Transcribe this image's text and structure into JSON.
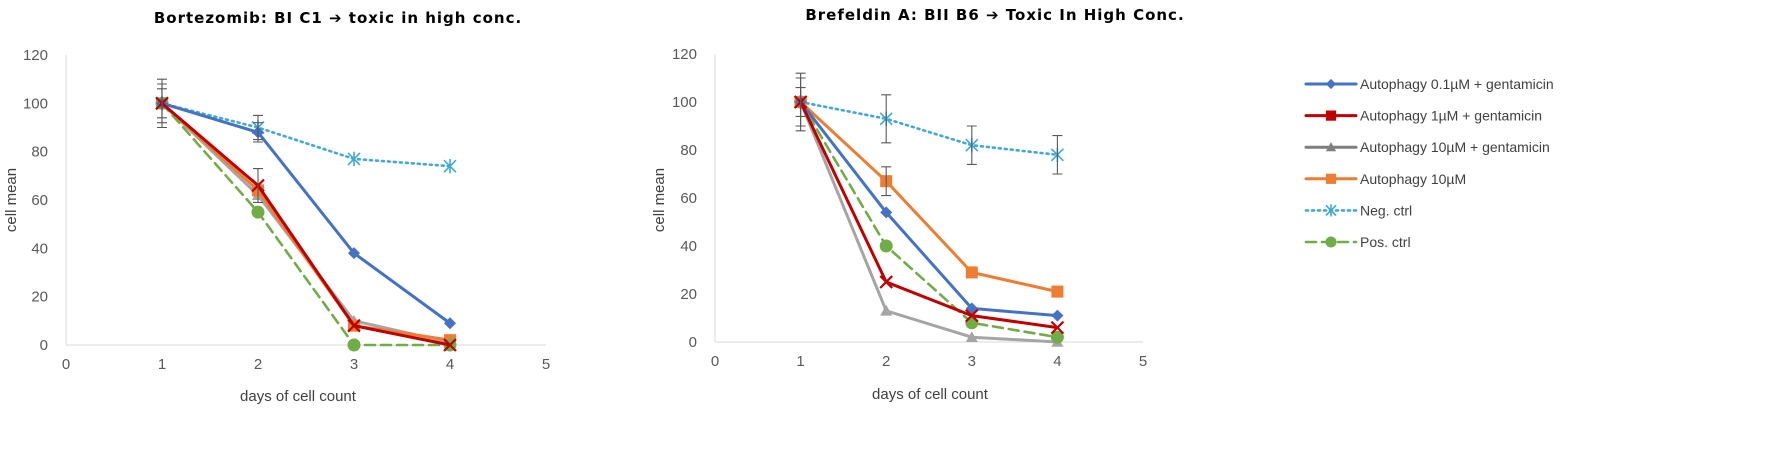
{
  "chart_data": [
    {
      "type": "line",
      "title": "Bortezomib: BI C1 ➔ toxic in high conc.",
      "xlabel": "days of cell count",
      "ylabel": "cell mean",
      "xlim": [
        0,
        5
      ],
      "ylim": [
        0,
        120
      ],
      "xticks": [
        0,
        1,
        2,
        3,
        4,
        5
      ],
      "yticks": [
        0,
        20,
        40,
        60,
        80,
        100,
        120
      ],
      "grid": false,
      "series": [
        {
          "name": "Autophagy 10µM + gentamicin",
          "color": "#a5a5a5",
          "marker": "triangle",
          "dash": "solid",
          "x": [
            1,
            2,
            3,
            4
          ],
          "y": [
            100,
            62,
            10,
            1
          ]
        },
        {
          "name": "Autophagy 10µM",
          "color": "#ed7d31",
          "marker": "square",
          "dash": "solid",
          "x": [
            1,
            2,
            3,
            4
          ],
          "y": [
            100,
            64,
            8,
            2
          ]
        },
        {
          "name": "Neg. ctrl",
          "color": "#41a9d6",
          "marker": "star",
          "dash": "dotted",
          "x": [
            1,
            2,
            3,
            4
          ],
          "y": [
            100,
            90,
            77,
            74
          ],
          "err": [
            10,
            5,
            0,
            0
          ]
        },
        {
          "name": "Pos. ctrl",
          "color": "#70ad47",
          "marker": "circle",
          "dash": "dashed",
          "x": [
            1,
            2,
            3,
            4
          ],
          "y": [
            100,
            55,
            0,
            0
          ]
        },
        {
          "name": "Autophagy 0.1µM + gentamicin",
          "color": "#4472c4",
          "marker": "diamond",
          "dash": "solid",
          "x": [
            1,
            2,
            3,
            4
          ],
          "y": [
            100,
            88,
            38,
            9
          ],
          "err": [
            8,
            4,
            0,
            0
          ]
        },
        {
          "name": "Autophagy 1µM + gentamicin",
          "color": "#c00000",
          "marker": "x",
          "dash": "solid",
          "x": [
            1,
            2,
            3,
            4
          ],
          "y": [
            100,
            66,
            8,
            0
          ],
          "err": [
            6,
            7,
            0,
            0
          ]
        }
      ]
    },
    {
      "type": "line",
      "title": "Brefeldin A: BII B6 ➔ Toxic In High Conc.",
      "xlabel": "days of cell count",
      "ylabel": "cell mean",
      "xlim": [
        0,
        5
      ],
      "ylim": [
        0,
        120
      ],
      "xticks": [
        0,
        1,
        2,
        3,
        4,
        5
      ],
      "yticks": [
        0,
        20,
        40,
        60,
        80,
        100,
        120
      ],
      "grid": false,
      "series": [
        {
          "name": "Autophagy 10µM + gentamicin",
          "color": "#a5a5a5",
          "marker": "triangle",
          "dash": "solid",
          "x": [
            1,
            2,
            3,
            4
          ],
          "y": [
            100,
            13,
            2,
            0
          ]
        },
        {
          "name": "Pos. ctrl",
          "color": "#70ad47",
          "marker": "circle",
          "dash": "dashed",
          "x": [
            1,
            2,
            3,
            4
          ],
          "y": [
            100,
            40,
            8,
            2
          ]
        },
        {
          "name": "Neg. ctrl",
          "color": "#41a9d6",
          "marker": "star",
          "dash": "dotted",
          "x": [
            1,
            2,
            3,
            4
          ],
          "y": [
            100,
            93,
            82,
            78
          ],
          "err": [
            12,
            10,
            8,
            8
          ]
        },
        {
          "name": "Autophagy 10µM",
          "color": "#ed7d31",
          "marker": "square",
          "dash": "solid",
          "x": [
            1,
            2,
            3,
            4
          ],
          "y": [
            100,
            67,
            29,
            21
          ],
          "err": [
            6,
            6,
            0,
            0
          ]
        },
        {
          "name": "Autophagy 0.1µM + gentamicin",
          "color": "#4472c4",
          "marker": "diamond",
          "dash": "solid",
          "x": [
            1,
            2,
            3,
            4
          ],
          "y": [
            100,
            54,
            14,
            11
          ]
        },
        {
          "name": "Autophagy 1µM + gentamicin",
          "color": "#c00000",
          "marker": "x",
          "dash": "solid",
          "x": [
            1,
            2,
            3,
            4
          ],
          "y": [
            100,
            25,
            11,
            6
          ],
          "err": [
            10,
            0,
            0,
            0
          ]
        }
      ]
    }
  ],
  "legend": {
    "placement": "right",
    "entries": [
      {
        "label": "Autophagy 0.1µM + gentamicin",
        "color": "#4472c4",
        "marker": "diamond",
        "dash": "solid"
      },
      {
        "label": "Autophagy 1µM + gentamicin",
        "color": "#c00000",
        "marker": "square",
        "dash": "solid"
      },
      {
        "label": "Autophagy 10µM + gentamicin",
        "color": "#7f7f7f",
        "marker": "triangle",
        "dash": "solid"
      },
      {
        "label": "Autophagy 10µM",
        "color": "#ed7d31",
        "marker": "square",
        "dash": "solid"
      },
      {
        "label": "Neg. ctrl",
        "color": "#41a9d6",
        "marker": "star",
        "dash": "dotted"
      },
      {
        "label": "Pos. ctrl",
        "color": "#70ad47",
        "marker": "circle",
        "dash": "dashed"
      }
    ]
  }
}
